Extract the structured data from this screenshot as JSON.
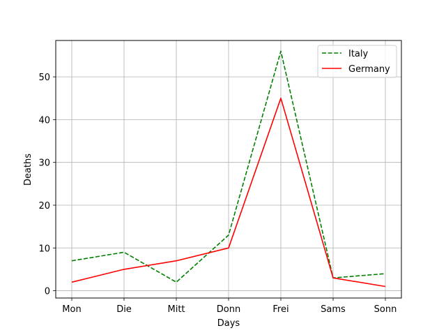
{
  "chart_data": {
    "type": "line",
    "title": "",
    "xlabel": "Days",
    "ylabel": "Deaths",
    "categories": [
      "Mon",
      "Die",
      "Mitt",
      "Donn",
      "Frei",
      "Sams",
      "Sonn"
    ],
    "yticks": [
      0,
      10,
      20,
      30,
      40,
      50
    ],
    "ylim": [
      -1.7,
      58.5
    ],
    "grid": true,
    "legend_position": "top-right",
    "series": [
      {
        "name": "Italy",
        "values": [
          7,
          9,
          2,
          13,
          56,
          3,
          4
        ],
        "color": "#008000",
        "style": "dashed"
      },
      {
        "name": "Germany",
        "values": [
          2,
          5,
          7,
          10,
          45,
          3,
          1
        ],
        "color": "#ff0000",
        "style": "solid"
      }
    ]
  }
}
